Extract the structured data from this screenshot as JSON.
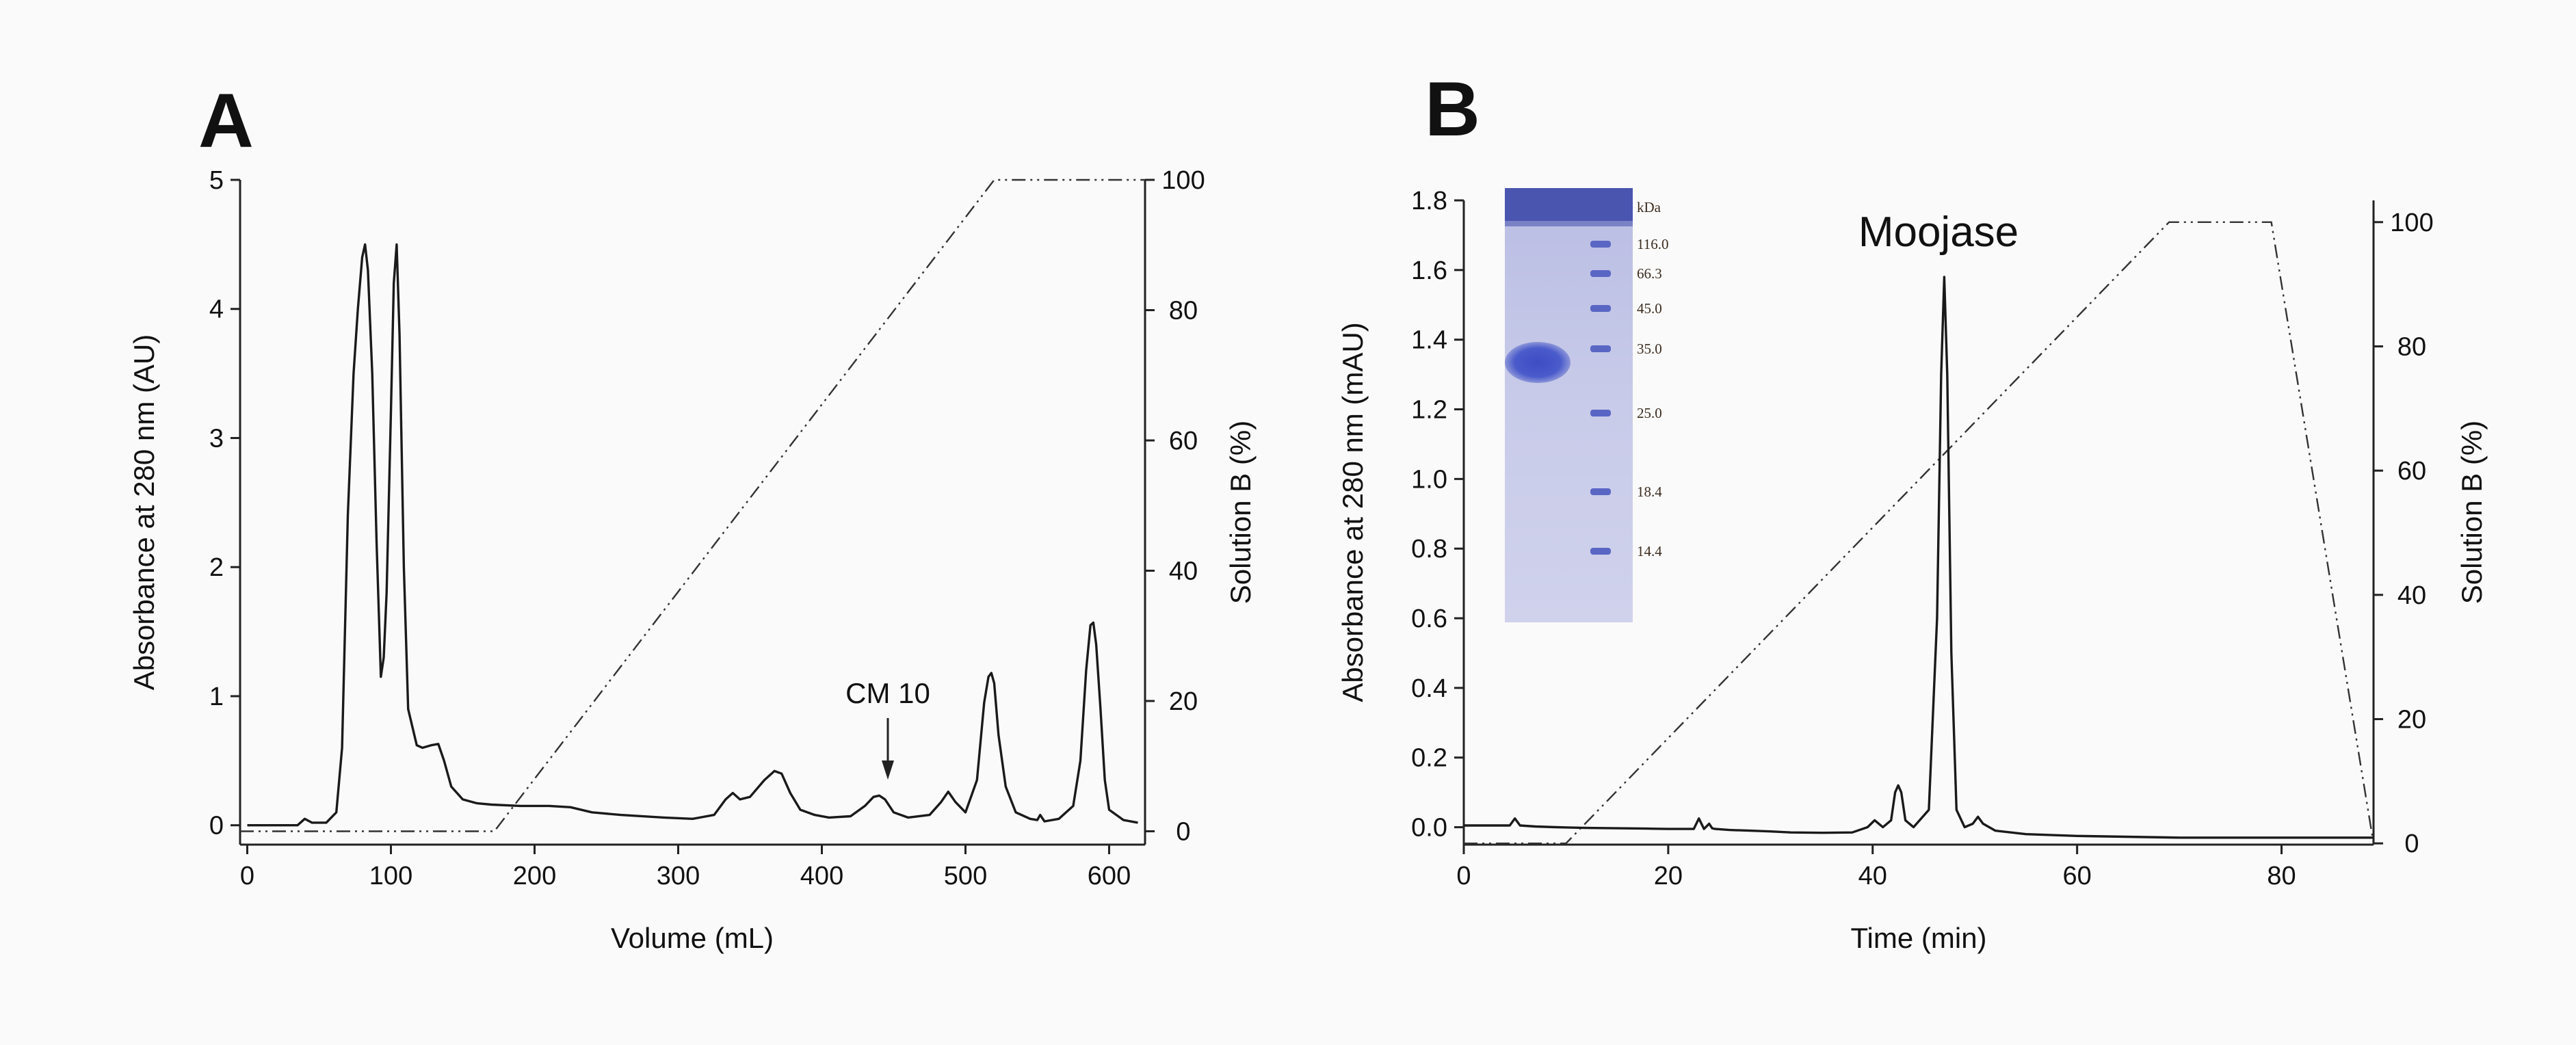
{
  "chart_data": [
    {
      "panel": "A",
      "type": "line",
      "xlabel": "Volume (mL)",
      "ylabel": "Absorbance at 280 nm (AU)",
      "y2label": "Solution B (%)",
      "xlim": [
        -5,
        625
      ],
      "ylim": [
        -0.15,
        5
      ],
      "y2lim": [
        -2.05,
        100
      ],
      "xticks": [
        0,
        100,
        200,
        300,
        400,
        500,
        600
      ],
      "yticks": [
        0,
        1,
        2,
        3,
        4,
        5
      ],
      "y2ticks": [
        0,
        20,
        40,
        60,
        80,
        100
      ],
      "series": [
        {
          "name": "Absorbance at 280 nm",
          "axis": "left",
          "style": "solid",
          "x": [
            0,
            20,
            35,
            40,
            45,
            55,
            62,
            66,
            70,
            74,
            77,
            80,
            82,
            84,
            87,
            90,
            93,
            95,
            97,
            100,
            102,
            104,
            106,
            109,
            112,
            118,
            122,
            128,
            133,
            137,
            142,
            150,
            160,
            170,
            190,
            210,
            225,
            240,
            260,
            290,
            310,
            325,
            333,
            338,
            343,
            350,
            360,
            367,
            372,
            378,
            385,
            395,
            405,
            420,
            430,
            436,
            440,
            444,
            450,
            460,
            475,
            483,
            488,
            493,
            500,
            508,
            513,
            516,
            518,
            520,
            523,
            528,
            535,
            545,
            550,
            552,
            555,
            565,
            575,
            580,
            584,
            587,
            589,
            591,
            594,
            597,
            600,
            610,
            620
          ],
          "y": [
            0.0,
            0.0,
            0.0,
            0.05,
            0.02,
            0.02,
            0.1,
            0.6,
            2.4,
            3.5,
            4.0,
            4.4,
            4.5,
            4.3,
            3.5,
            2.2,
            1.15,
            1.3,
            1.8,
            3.2,
            4.2,
            4.5,
            3.8,
            2.0,
            0.9,
            0.62,
            0.6,
            0.62,
            0.63,
            0.5,
            0.3,
            0.2,
            0.17,
            0.16,
            0.15,
            0.15,
            0.14,
            0.1,
            0.08,
            0.06,
            0.05,
            0.08,
            0.2,
            0.25,
            0.2,
            0.22,
            0.35,
            0.42,
            0.4,
            0.25,
            0.12,
            0.08,
            0.06,
            0.07,
            0.15,
            0.22,
            0.23,
            0.2,
            0.1,
            0.06,
            0.08,
            0.18,
            0.26,
            0.18,
            0.1,
            0.35,
            0.95,
            1.15,
            1.18,
            1.1,
            0.7,
            0.3,
            0.1,
            0.05,
            0.04,
            0.08,
            0.03,
            0.05,
            0.15,
            0.5,
            1.2,
            1.55,
            1.57,
            1.4,
            0.9,
            0.35,
            0.12,
            0.04,
            0.02
          ]
        },
        {
          "name": "Solution B (%)",
          "axis": "right",
          "style": "dash-dot",
          "x": [
            -5,
            172,
            520,
            625
          ],
          "y": [
            0,
            0,
            100,
            100
          ]
        }
      ],
      "annotations": [
        {
          "text": "CM 10",
          "x": 440,
          "y": 0.27,
          "arrow": true
        }
      ]
    },
    {
      "panel": "B",
      "type": "line",
      "xlabel": "Time (min)",
      "ylabel": "Absorbance at 280 nm (mAU)",
      "y2label": "Solution B (%)",
      "xlim": [
        0,
        89
      ],
      "ylim": [
        -0.05,
        1.8
      ],
      "y2lim": [
        -0.2,
        103.5
      ],
      "xticks": [
        0,
        20,
        40,
        60,
        80
      ],
      "yticks": [
        0.0,
        0.2,
        0.4,
        0.6,
        0.8,
        1.0,
        1.2,
        1.4,
        1.6,
        1.8
      ],
      "y2ticks": [
        0,
        20,
        40,
        60,
        80,
        100
      ],
      "series": [
        {
          "name": "Absorbance at 280 nm",
          "axis": "left",
          "style": "solid",
          "x": [
            0,
            4.5,
            5,
            5.5,
            7,
            9,
            12,
            15,
            18,
            20,
            22.5,
            23,
            23.5,
            24,
            24.3,
            24.6,
            26,
            28,
            30,
            32,
            35,
            38,
            39.5,
            40.2,
            41,
            41.8,
            42.2,
            42.5,
            42.8,
            43.2,
            44,
            45.5,
            46.3,
            46.7,
            47,
            47.3,
            47.7,
            48.2,
            49,
            49.8,
            50.3,
            50.8,
            52,
            55,
            60,
            70,
            80,
            89
          ],
          "y": [
            0.005,
            0.005,
            0.025,
            0.005,
            0.002,
            0.0,
            -0.002,
            -0.003,
            -0.004,
            -0.005,
            -0.005,
            0.025,
            -0.005,
            0.01,
            -0.003,
            -0.005,
            -0.008,
            -0.01,
            -0.012,
            -0.015,
            -0.016,
            -0.015,
            0.0,
            0.02,
            0.0,
            0.02,
            0.1,
            0.12,
            0.1,
            0.02,
            0.0,
            0.05,
            0.6,
            1.3,
            1.58,
            1.3,
            0.5,
            0.05,
            0.0,
            0.01,
            0.03,
            0.01,
            -0.01,
            -0.02,
            -0.025,
            -0.03,
            -0.03,
            -0.03
          ]
        },
        {
          "name": "Solution B (%)",
          "axis": "right",
          "style": "dash-dot",
          "x": [
            0,
            10,
            69,
            79,
            89
          ],
          "y": [
            0,
            0,
            100,
            100,
            0
          ]
        }
      ],
      "annotations": [
        {
          "text": "Moojase",
          "x": 47,
          "y": 1.62,
          "arrow": false
        }
      ],
      "inset": {
        "type": "SDS-PAGE gel image",
        "unit_label": "kDa",
        "marker_labels": [
          "116.0",
          "66.3",
          "45.0",
          "35.0",
          "25.0",
          "18.4",
          "14.4"
        ]
      }
    }
  ],
  "panels": {
    "A": "A",
    "B": "B"
  },
  "colors": {
    "trace": "#1a1a1a",
    "gel_background": "#c6c8e6",
    "gel_band": "#4756c6",
    "background": "#fafafa"
  }
}
